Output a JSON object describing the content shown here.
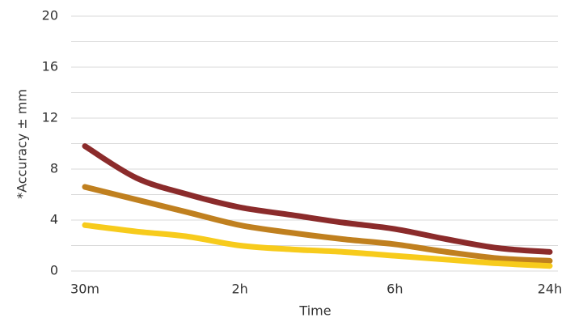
{
  "chart_data": {
    "type": "line",
    "y_label": "*Accuracy ± mm",
    "x_label": "Time",
    "categories": [
      "30m",
      null,
      null,
      "2h",
      null,
      null,
      "6h",
      null,
      null,
      "24h"
    ],
    "series": [
      {
        "color": "#8b2b2b",
        "values": [
          9.8,
          7.3,
          6.0,
          5.0,
          4.4,
          3.8,
          3.3,
          2.5,
          1.8,
          1.5
        ]
      },
      {
        "color": "#c0801f",
        "values": [
          6.6,
          5.6,
          4.6,
          3.6,
          3.0,
          2.5,
          2.1,
          1.5,
          1.0,
          0.8
        ]
      },
      {
        "color": "#f7cb1c",
        "values": [
          3.6,
          3.1,
          2.7,
          2.0,
          1.7,
          1.5,
          1.2,
          0.9,
          0.6,
          0.4
        ]
      }
    ],
    "ylim": [
      0,
      20
    ],
    "yticks": [
      0,
      4,
      8,
      12,
      16,
      20
    ],
    "minor_yticks": [
      2,
      6,
      10,
      14,
      18
    ],
    "grid": true
  }
}
